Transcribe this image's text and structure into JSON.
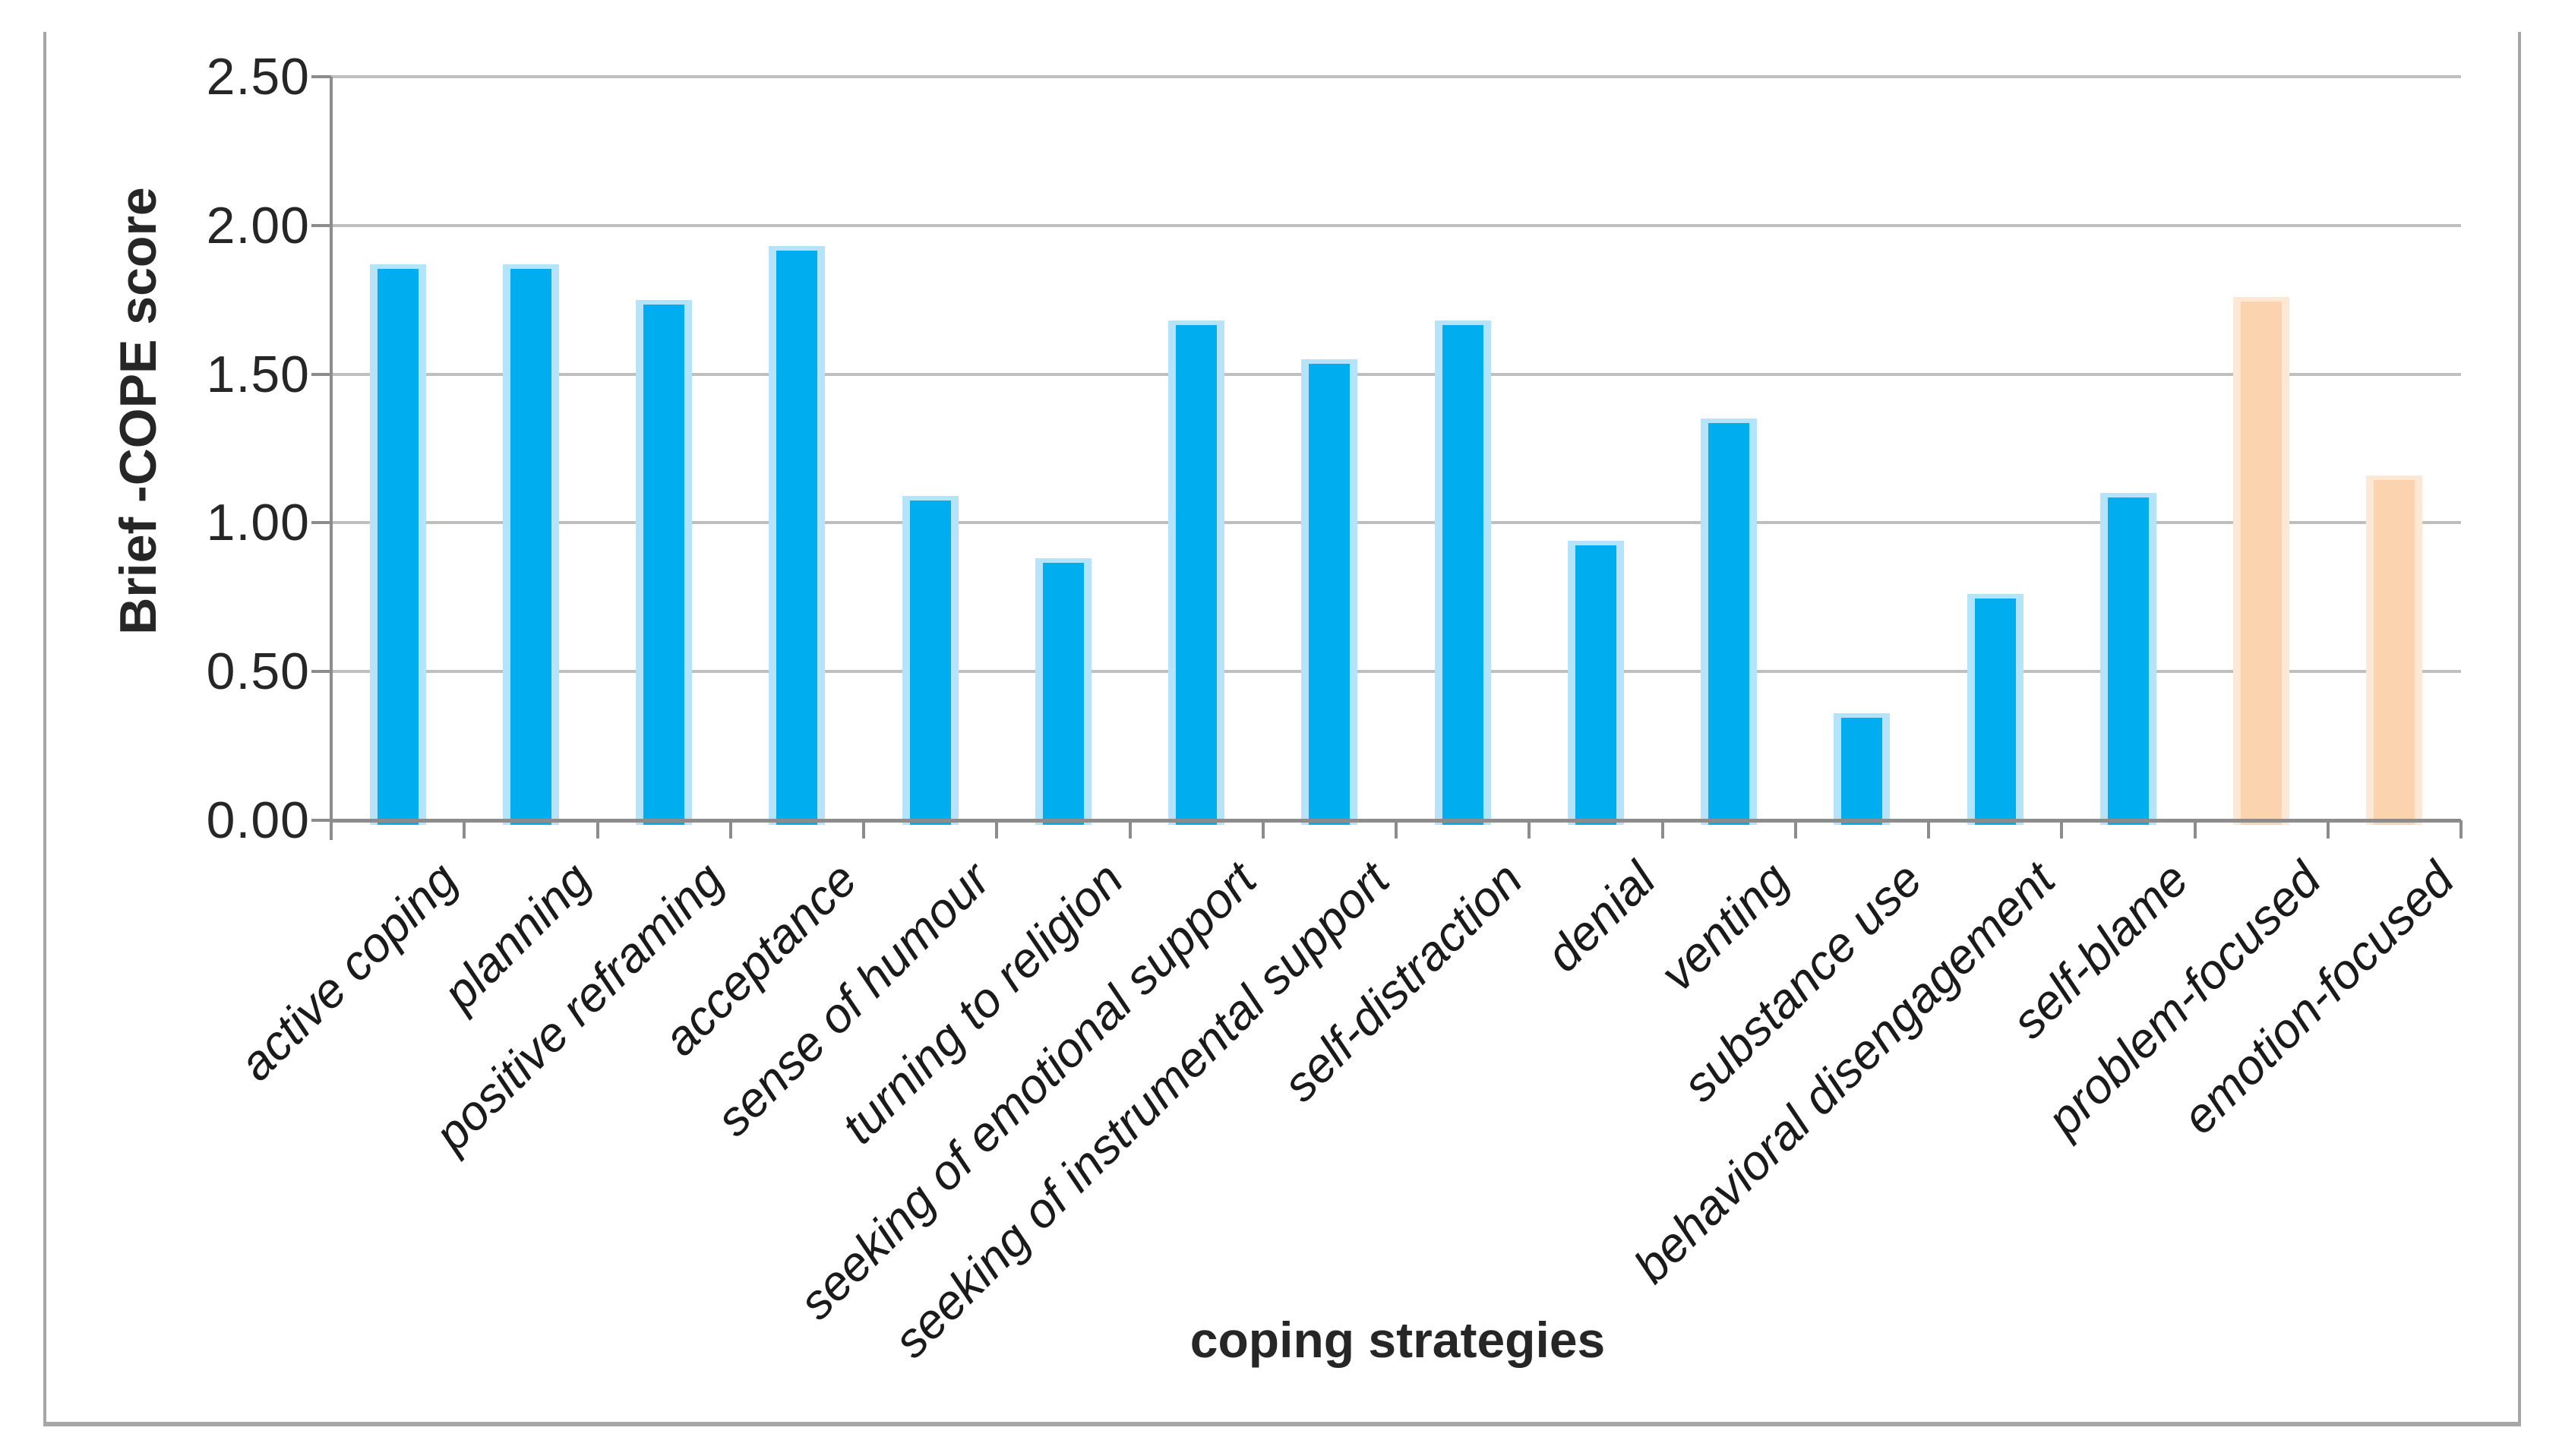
{
  "figure": {
    "background": "#ffffff",
    "xlabel": "coping strategies",
    "ylabel": "Brief -COPE score"
  },
  "chart_data": {
    "type": "bar",
    "title": "",
    "xlabel": "coping strategies",
    "ylabel": "Brief -COPE score",
    "ylim": [
      0,
      2.5
    ],
    "ytick_interval": 0.5,
    "ytick_labels": [
      "0.00",
      "0.50",
      "1.00",
      "1.50",
      "2.00",
      "2.50"
    ],
    "grid": true,
    "legend_position": "none",
    "categories": [
      "active coping",
      "planning",
      "positive reframing",
      "acceptance",
      "sense of humour",
      "turning to religion",
      "seeking of emotional support",
      "seeking of instrumental support",
      "self-distraction",
      "denial",
      "venting",
      "substance use",
      "behavioral disengagement",
      "self-blame",
      "problem-focused",
      "emotion-focused"
    ],
    "values": [
      1.87,
      1.87,
      1.75,
      1.93,
      1.09,
      0.88,
      1.68,
      1.55,
      1.68,
      0.94,
      1.35,
      0.36,
      0.76,
      1.1,
      1.76,
      1.16
    ],
    "series": [
      {
        "name": "Brief-COPE score",
        "values": [
          1.87,
          1.87,
          1.75,
          1.93,
          1.09,
          0.88,
          1.68,
          1.55,
          1.68,
          0.94,
          1.35,
          0.36,
          0.76,
          1.1,
          1.76,
          1.16
        ]
      }
    ],
    "highlight_start_index": 14,
    "colors": {
      "bar_blue": "#00adee",
      "bar_blue_edge": "#b5e3f9",
      "bar_tan": "#fbd3ae",
      "bar_tan_edge": "#fde8d5",
      "gridline": "#bfbfbf",
      "axis": "#8c8c8c",
      "frame": "#a6a6a6",
      "text": "#262626"
    }
  }
}
